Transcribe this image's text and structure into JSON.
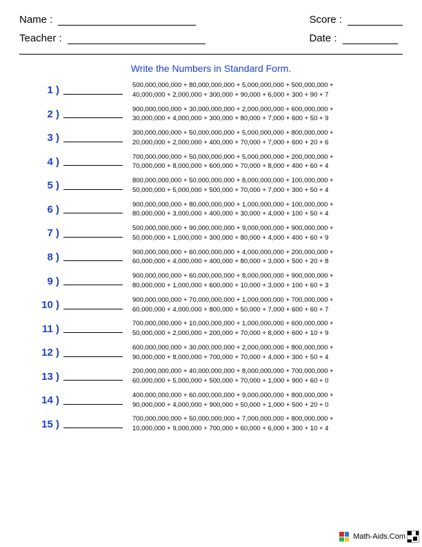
{
  "header": {
    "name_label": "Name :",
    "teacher_label": "Teacher :",
    "score_label": "Score :",
    "date_label": "Date :"
  },
  "title": "Write the Numbers in Standard Form.",
  "colors": {
    "accent": "#1a3fd1",
    "text": "#000000",
    "background": "#ffffff"
  },
  "problems": [
    {
      "num": "1 )",
      "line1": "500,000,000,000 + 80,000,000,000 + 5,000,000,000 + 500,000,000 +",
      "line2": "40,000,000 + 2,000,000 + 300,000 + 90,000 + 6,000 + 300 + 90 + 7"
    },
    {
      "num": "2 )",
      "line1": "900,000,000,000 + 30,000,000,000 + 2,000,000,000 + 600,000,000 +",
      "line2": "30,000,000 + 4,000,000 + 300,000 + 80,000 + 7,000 + 600 + 50 + 9"
    },
    {
      "num": "3 )",
      "line1": "300,000,000,000 + 50,000,000,000 + 5,000,000,000 + 800,000,000 +",
      "line2": "20,000,000 + 2,000,000 + 400,000 + 70,000 + 7,000 + 600 + 20 + 6"
    },
    {
      "num": "4 )",
      "line1": "700,000,000,000 + 50,000,000,000 + 5,000,000,000 + 200,000,000 +",
      "line2": "70,000,000 + 8,000,000 + 600,000 + 70,000 + 8,000 + 400 + 60 + 4"
    },
    {
      "num": "5 )",
      "line1": "800,000,000,000 + 50,000,000,000 + 8,000,000,000 + 100,000,000 +",
      "line2": "50,000,000 + 5,000,000 + 500,000 + 70,000 + 7,000 + 300 + 50 + 4"
    },
    {
      "num": "6 )",
      "line1": "900,000,000,000 + 80,000,000,000 + 1,000,000,000 + 100,000,000 +",
      "line2": "80,000,000 + 3,000,000 + 400,000 + 30,000 + 4,000 + 100 + 50 + 4"
    },
    {
      "num": "7 )",
      "line1": "500,000,000,000 + 90,000,000,000 + 9,000,000,000 + 900,000,000 +",
      "line2": "50,000,000 + 1,000,000 + 300,000 + 80,000 + 4,000 + 400 + 60 + 9"
    },
    {
      "num": "8 )",
      "line1": "900,000,000,000 + 60,000,000,000 + 4,000,000,000 + 200,000,000 +",
      "line2": "60,000,000 + 4,000,000 + 400,000 + 80,000 + 3,000 + 500 + 20 + 8"
    },
    {
      "num": "9 )",
      "line1": "900,000,000,000 + 60,000,000,000 + 8,000,000,000 + 900,000,000 +",
      "line2": "80,000,000 + 1,000,000 + 600,000 + 10,000 + 3,000 + 100 + 60 + 3"
    },
    {
      "num": "10 )",
      "line1": "900,000,000,000 + 70,000,000,000 + 1,000,000,000 + 700,000,000 +",
      "line2": "60,000,000 + 4,000,000 + 800,000 + 50,000 + 7,000 + 600 + 60 + 7"
    },
    {
      "num": "11 )",
      "line1": "700,000,000,000 + 10,000,000,000 + 1,000,000,000 + 600,000,000 +",
      "line2": "50,000,000 + 2,000,000 + 200,000 + 70,000 + 8,000 + 600 + 10 + 9"
    },
    {
      "num": "12 )",
      "line1": "600,000,000,000 + 30,000,000,000 + 2,000,000,000 + 800,000,000 +",
      "line2": "90,000,000 + 8,000,000 + 700,000 + 70,000 + 4,000 + 300 + 50 + 4"
    },
    {
      "num": "13 )",
      "line1": "200,000,000,000 + 40,000,000,000 + 8,000,000,000 + 700,000,000 +",
      "line2": "60,000,000 + 5,000,000 + 500,000 + 70,000 + 1,000 + 900 + 60 + 0"
    },
    {
      "num": "14 )",
      "line1": "400,000,000,000 + 60,000,000,000 + 9,000,000,000 + 800,000,000 +",
      "line2": "90,000,000 + 4,000,000 + 900,000 + 50,000 + 1,000 + 500 + 20 + 0"
    },
    {
      "num": "15 )",
      "line1": "700,000,000,000 + 50,000,000,000 + 7,000,000,000 + 800,000,000 +",
      "line2": "10,000,000 + 9,000,000 + 700,000 + 60,000 + 6,000 + 300 + 10 + 4"
    }
  ],
  "footer": {
    "brand": "Math-Aids.Com",
    "logo_colors": [
      "#d92b2b",
      "#2b7bd9",
      "#2bb54a",
      "#f0c419"
    ]
  }
}
